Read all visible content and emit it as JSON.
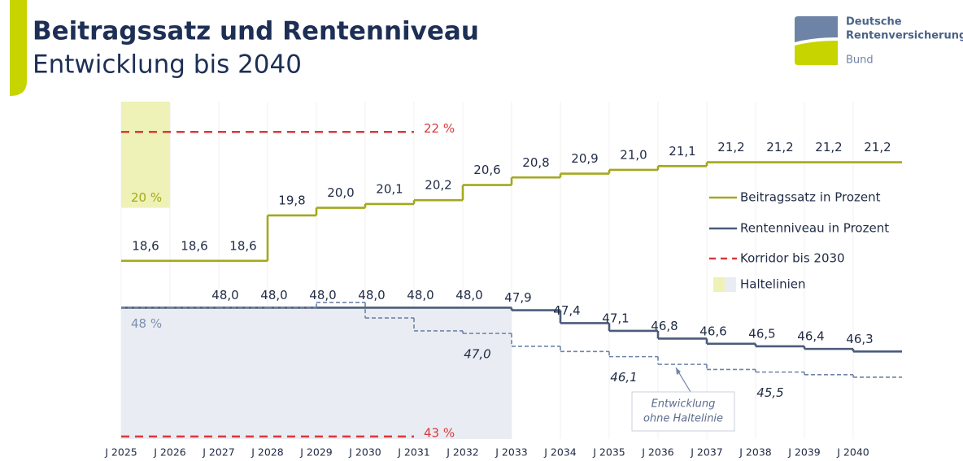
{
  "chart_data": {
    "type": "step",
    "title": "Beitragssatz und Rentenniveau",
    "subtitle": "Entwicklung bis 2040",
    "logo": {
      "lines": [
        "Deutsche",
        "Rentenversicherung",
        "Bund"
      ]
    },
    "categories": [
      "J 2025",
      "J 2026",
      "J 2027",
      "J 2028",
      "J 2029",
      "J 2030",
      "J 2031",
      "J 2032",
      "J 2033",
      "J 2034",
      "J 2035",
      "J 2036",
      "J 2037",
      "J 2038",
      "J 2039",
      "J 2040"
    ],
    "ylim": [
      13.9,
      22.8
    ],
    "y2lim": [
      42.9,
      56.0
    ],
    "series": [
      {
        "name": "Beitragssatz in Prozent",
        "color": "#a3a81c",
        "axis": "y",
        "values": [
          18.6,
          18.6,
          18.6,
          19.8,
          20.0,
          20.1,
          20.2,
          20.6,
          20.8,
          20.9,
          21.0,
          21.1,
          21.2,
          21.2,
          21.2,
          21.2
        ],
        "value_labels": [
          "18,6",
          "18,6",
          "18,6",
          "19,8",
          "20,0",
          "20,1",
          "20,2",
          "20,6",
          "20,8",
          "20,9",
          "21,0",
          "21,1",
          "21,2",
          "21,2",
          "21,2",
          "21,2"
        ]
      },
      {
        "name": "Rentenniveau in Prozent",
        "color": "#4b5b7a",
        "axis": "y2",
        "values": [
          48.0,
          48.0,
          48.0,
          48.0,
          48.0,
          48.0,
          48.0,
          48.0,
          47.9,
          47.4,
          47.1,
          46.8,
          46.6,
          46.5,
          46.4,
          46.3
        ],
        "value_labels": [
          null,
          null,
          "48,0",
          "48,0",
          "48,0",
          "48,0",
          "48,0",
          "48,0",
          "47,9",
          "47,4",
          "47,1",
          "46,8",
          "46,6",
          "46,5",
          "46,4",
          "46,3"
        ]
      },
      {
        "color": "#6f84a8",
        "axis": "y2",
        "dashed": true,
        "values": [
          48.0,
          48.0,
          48.0,
          48.0,
          48.2,
          47.6,
          47.1,
          47.0,
          46.5,
          46.3,
          46.1,
          45.8,
          45.6,
          45.5,
          45.4,
          45.3
        ],
        "value_labels": [
          null,
          null,
          null,
          null,
          null,
          null,
          null,
          "47,0",
          null,
          null,
          "46,1",
          null,
          null,
          "45,5",
          null,
          null
        ]
      }
    ],
    "corridor": {
      "name": "Korridor bis 2030",
      "color": "#d9393b",
      "until": "J 2030",
      "lines": [
        {
          "value": 22,
          "label": "22 %",
          "axis": "y"
        },
        {
          "value": 43,
          "label": "43 %",
          "axis": "y2"
        }
      ]
    },
    "haltelinien": {
      "name": "Haltelinien",
      "items": [
        {
          "value": 20,
          "label": "20 %",
          "axis": "y",
          "side": "above",
          "from": "J 2025",
          "to": "J 2025",
          "color": "#eef2b6"
        },
        {
          "value": 48,
          "label": "48 %",
          "axis": "y2",
          "side": "below",
          "from": "J 2025",
          "to": "J 2032",
          "color": "#e9ecf2"
        }
      ]
    },
    "annotation": {
      "lines": [
        "Entwicklung",
        "ohne Haltelinie"
      ],
      "series": 2,
      "at": "J 2036"
    }
  }
}
